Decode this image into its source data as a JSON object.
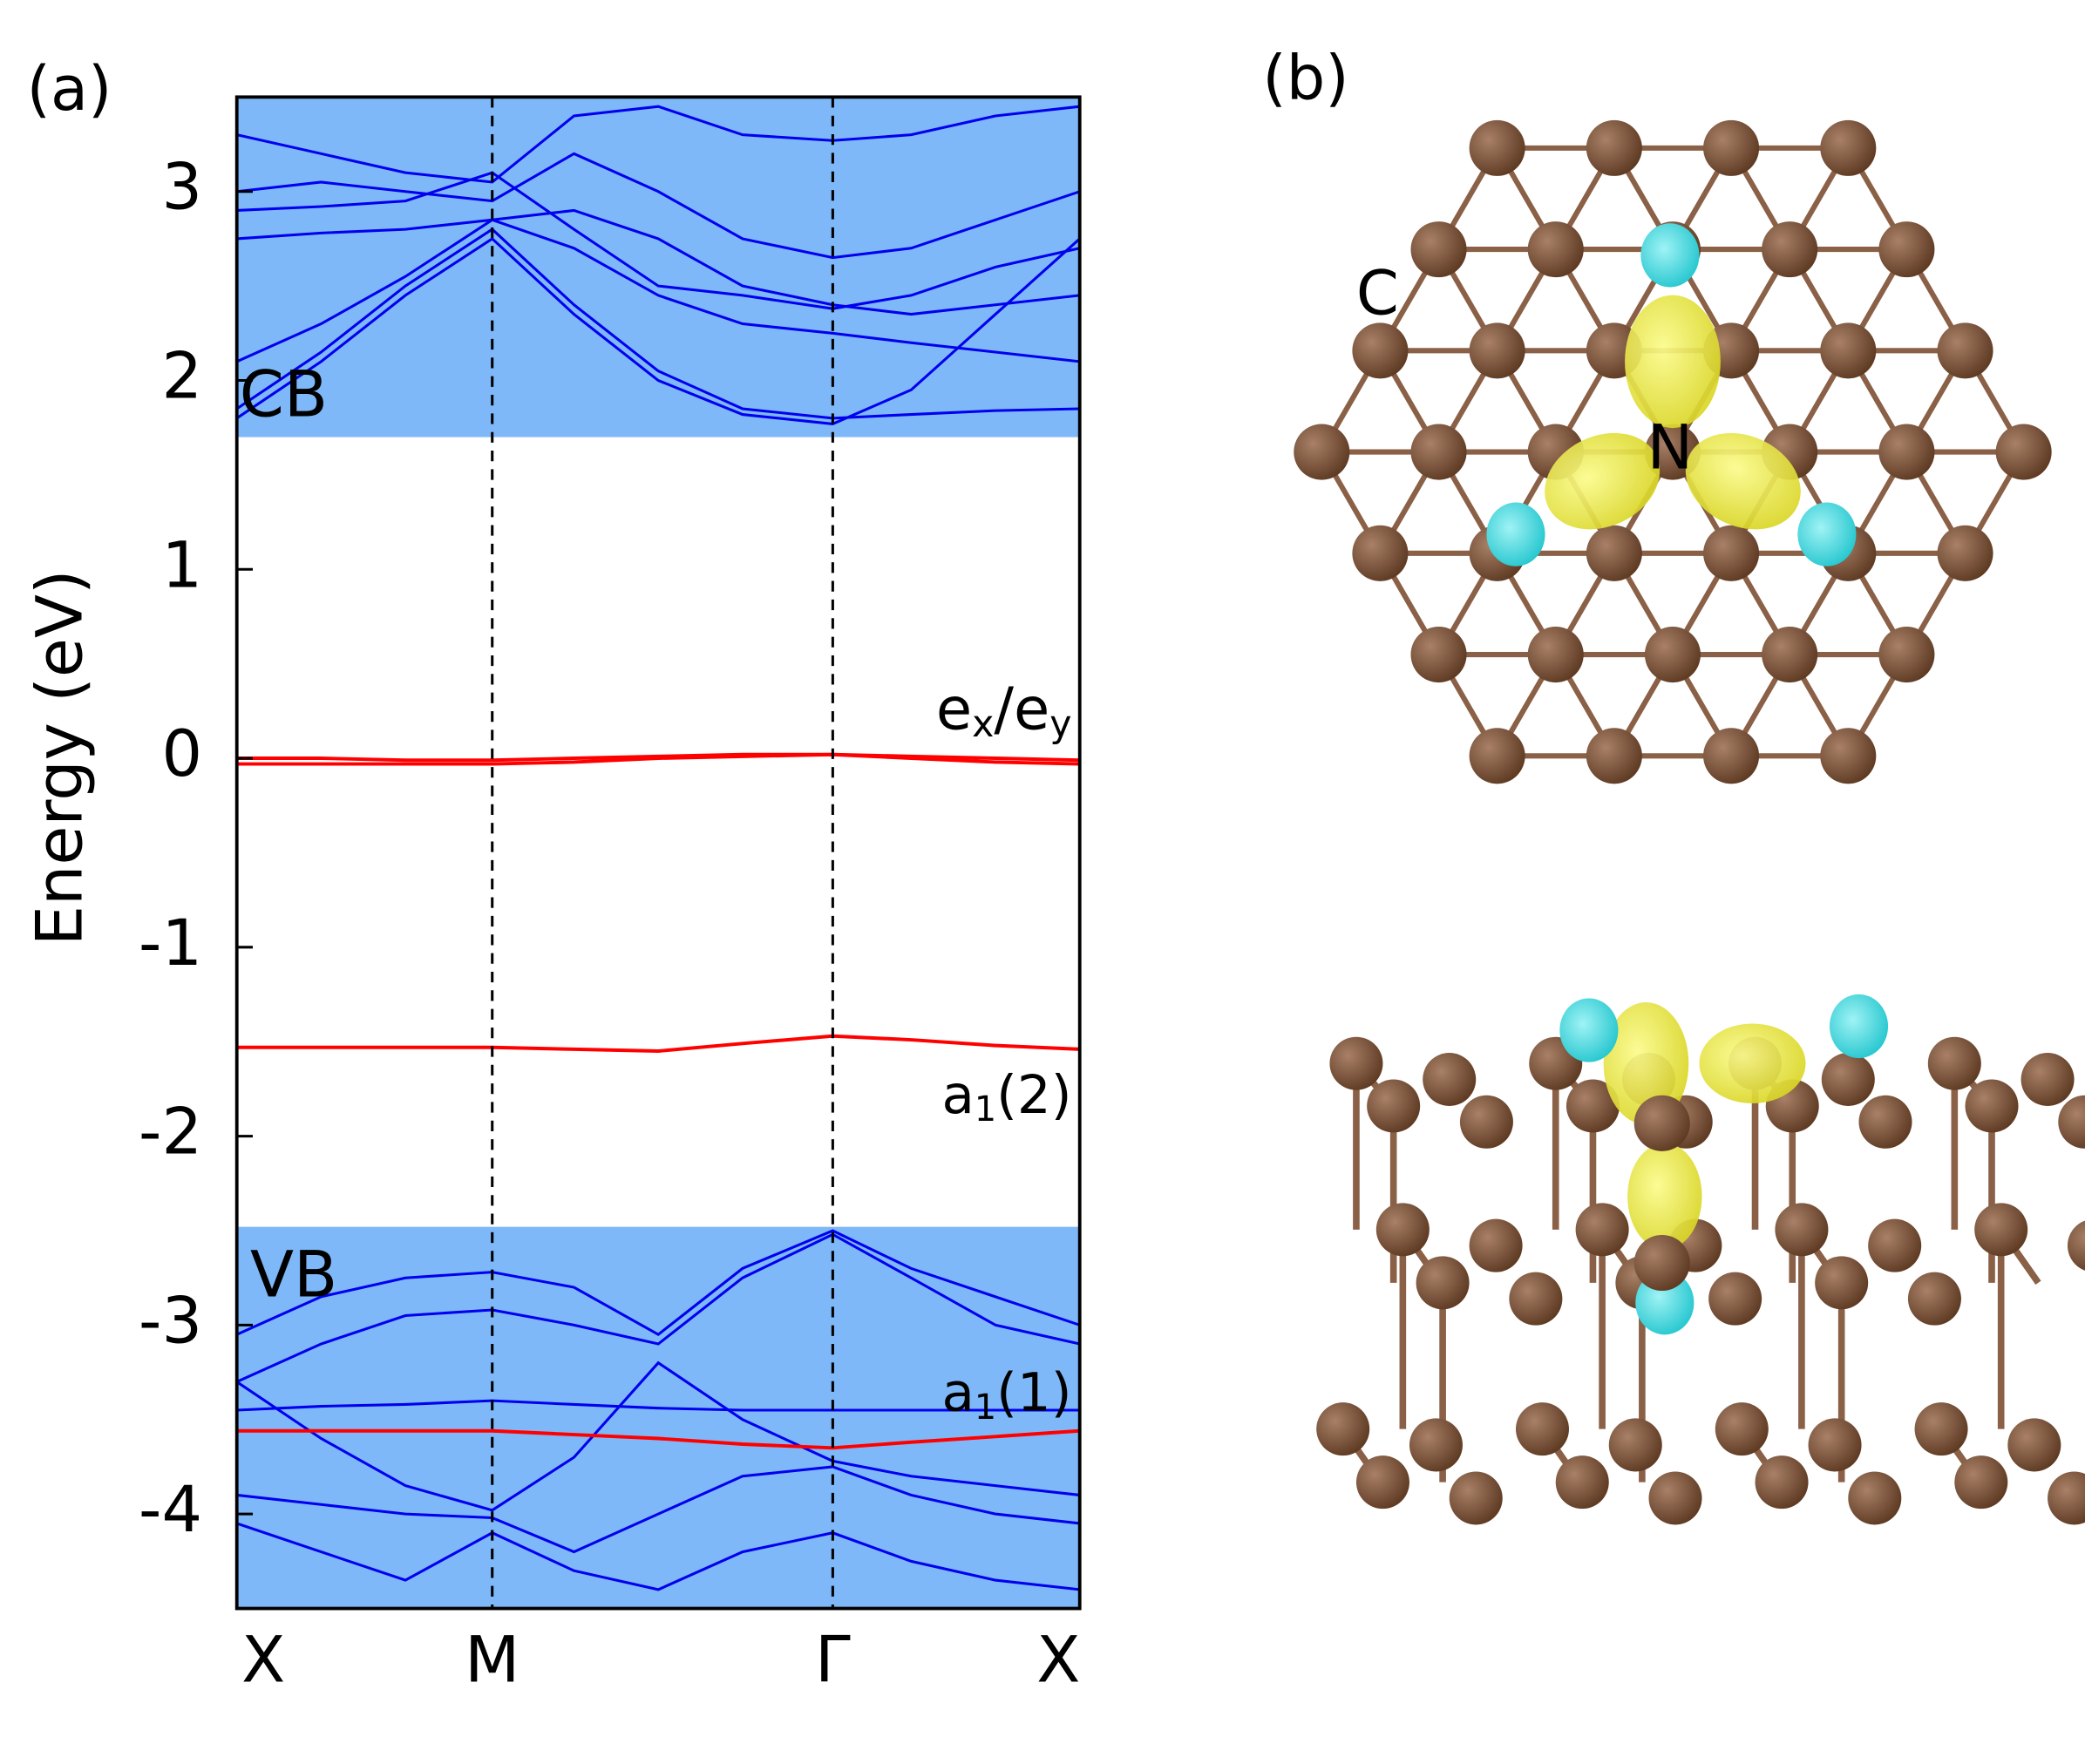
{
  "chart_data": {
    "type": "line",
    "panel_label": "(a)",
    "ylabel": "Energy (eV)",
    "xlim": [
      0,
      1
    ],
    "xticks": [
      {
        "value": 0,
        "label": "X"
      },
      {
        "value": 0.303,
        "label": "M"
      },
      {
        "value": 0.707,
        "label": "Γ"
      },
      {
        "value": 1,
        "label": "X"
      }
    ],
    "ylim": [
      -4.5,
      3.5
    ],
    "yticks": [
      -4,
      -3,
      -2,
      -1,
      0,
      1,
      2,
      3
    ],
    "shaded_regions": [
      {
        "label": "CB",
        "range": [
          1.7,
          3.5
        ],
        "color": "#7eb8f9"
      },
      {
        "label": "VB",
        "range": [
          -4.5,
          -2.48
        ],
        "color": "#7eb8f9"
      }
    ],
    "annotations": [
      {
        "parts": [
          {
            "text": "e"
          },
          {
            "text": "x",
            "sub": true
          },
          {
            "text": "/e"
          },
          {
            "text": "y",
            "sub": true
          }
        ]
      },
      {
        "parts": [
          {
            "text": "a"
          },
          {
            "text": "1",
            "sub": true
          },
          {
            "text": "(2)"
          }
        ]
      },
      {
        "parts": [
          {
            "text": "a"
          },
          {
            "text": "1",
            "sub": true
          },
          {
            "text": "(1)"
          }
        ]
      }
    ],
    "x": [
      0,
      0.1,
      0.2,
      0.303,
      0.4,
      0.5,
      0.6,
      0.707,
      0.8,
      0.9,
      1
    ],
    "series": [
      {
        "color": "#0000ee",
        "values": [
          1.8,
          2.1,
          2.45,
          2.75,
          2.35,
          2.0,
          1.82,
          1.77,
          1.95,
          2.35,
          2.75
        ]
      },
      {
        "color": "#0000ee",
        "values": [
          1.85,
          2.15,
          2.5,
          2.8,
          2.4,
          2.05,
          1.85,
          1.8,
          1.82,
          1.84,
          1.85
        ]
      },
      {
        "color": "#0000ee",
        "values": [
          2.1,
          2.3,
          2.55,
          2.85,
          2.7,
          2.45,
          2.3,
          2.25,
          2.2,
          2.15,
          2.1
        ]
      },
      {
        "color": "#0000ee",
        "values": [
          2.75,
          2.78,
          2.8,
          2.85,
          2.9,
          2.75,
          2.5,
          2.4,
          2.35,
          2.4,
          2.45
        ]
      },
      {
        "color": "#0000ee",
        "values": [
          3.0,
          3.05,
          3.0,
          2.95,
          3.2,
          3.0,
          2.75,
          2.65,
          2.7,
          2.85,
          3.0
        ]
      },
      {
        "color": "#0000ee",
        "values": [
          3.3,
          3.2,
          3.1,
          3.05,
          3.4,
          3.45,
          3.3,
          3.27,
          3.3,
          3.4,
          3.45
        ]
      },
      {
        "color": "#0000ee",
        "values": [
          2.9,
          2.92,
          2.95,
          3.1,
          2.8,
          2.5,
          2.45,
          2.38,
          2.45,
          2.6,
          2.7
        ]
      },
      {
        "color": "#0000ee",
        "values": [
          -3.05,
          -2.85,
          -2.75,
          -2.72,
          -2.8,
          -3.05,
          -2.7,
          -2.5,
          -2.7,
          -2.85,
          -3.0
        ]
      },
      {
        "color": "#0000ee",
        "values": [
          -3.3,
          -3.1,
          -2.95,
          -2.92,
          -3.0,
          -3.1,
          -2.75,
          -2.52,
          -2.75,
          -3.0,
          -3.1
        ]
      },
      {
        "color": "#0000ee",
        "values": [
          -3.45,
          -3.43,
          -3.42,
          -3.4,
          -3.42,
          -3.44,
          -3.45,
          -3.45,
          -3.45,
          -3.45,
          -3.45
        ]
      },
      {
        "color": "#0000ee",
        "values": [
          -3.3,
          -3.6,
          -3.85,
          -3.98,
          -3.7,
          -3.2,
          -3.5,
          -3.72,
          -3.8,
          -3.85,
          -3.9
        ]
      },
      {
        "color": "#0000ee",
        "values": [
          -3.9,
          -3.95,
          -4.0,
          -4.02,
          -4.2,
          -4.0,
          -3.8,
          -3.75,
          -3.9,
          -4.0,
          -4.05
        ]
      },
      {
        "color": "#0000ee",
        "values": [
          -4.05,
          -4.2,
          -4.35,
          -4.1,
          -4.3,
          -4.4,
          -4.2,
          -4.1,
          -4.25,
          -4.35,
          -4.4
        ]
      },
      {
        "color": "#ff0000",
        "values": [
          0,
          0,
          -0.01,
          -0.01,
          0,
          0.01,
          0.02,
          0.02,
          0.01,
          0,
          -0.01
        ]
      },
      {
        "color": "#ff0000",
        "values": [
          -0.03,
          -0.03,
          -0.03,
          -0.03,
          -0.02,
          0,
          0.01,
          0.02,
          0,
          -0.02,
          -0.03
        ]
      },
      {
        "color": "#ff0000",
        "values": [
          -1.53,
          -1.53,
          -1.53,
          -1.53,
          -1.54,
          -1.55,
          -1.51,
          -1.47,
          -1.49,
          -1.52,
          -1.54
        ]
      },
      {
        "color": "#ff0000",
        "values": [
          -3.56,
          -3.56,
          -3.56,
          -3.56,
          -3.58,
          -3.6,
          -3.63,
          -3.65,
          -3.62,
          -3.59,
          -3.56
        ]
      }
    ]
  },
  "panel_b": {
    "panel_label": "(b)",
    "atom_labels": [
      "C",
      "N"
    ]
  }
}
